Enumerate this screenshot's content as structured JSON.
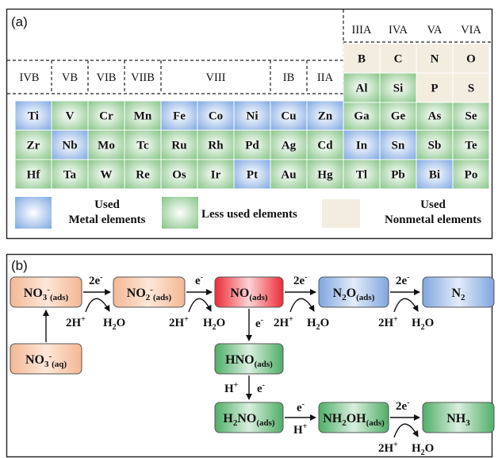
{
  "panel_a": {
    "label": "(a)",
    "main_groups": [
      "IIIA",
      "IVA",
      "VA",
      "VIA"
    ],
    "sub_groups": [
      "IVB",
      "VB",
      "VIB",
      "VIIB",
      "VIII",
      "IB",
      "IIA"
    ],
    "nonmetal_top": [
      {
        "sym": "B",
        "kind": "nonmetal"
      },
      {
        "sym": "C",
        "kind": "nonmetal"
      },
      {
        "sym": "N",
        "kind": "nonmetal"
      },
      {
        "sym": "O",
        "kind": "nonmetal"
      }
    ],
    "nonmetal_second": [
      {
        "sym": "Al",
        "kind": "less"
      },
      {
        "sym": "Si",
        "kind": "less"
      },
      {
        "sym": "P",
        "kind": "nonmetal"
      },
      {
        "sym": "S",
        "kind": "nonmetal"
      }
    ],
    "rows": [
      [
        {
          "sym": "Ti",
          "kind": "used"
        },
        {
          "sym": "V",
          "kind": "less"
        },
        {
          "sym": "Cr",
          "kind": "less"
        },
        {
          "sym": "Mn",
          "kind": "less"
        },
        {
          "sym": "Fe",
          "kind": "used"
        },
        {
          "sym": "Co",
          "kind": "used"
        },
        {
          "sym": "Ni",
          "kind": "used"
        },
        {
          "sym": "Cu",
          "kind": "used"
        },
        {
          "sym": "Zn",
          "kind": "used"
        },
        {
          "sym": "Ga",
          "kind": "less"
        },
        {
          "sym": "Ge",
          "kind": "less"
        },
        {
          "sym": "As",
          "kind": "less"
        },
        {
          "sym": "Se",
          "kind": "less"
        }
      ],
      [
        {
          "sym": "Zr",
          "kind": "less"
        },
        {
          "sym": "Nb",
          "kind": "used"
        },
        {
          "sym": "Mo",
          "kind": "less"
        },
        {
          "sym": "Tc",
          "kind": "less"
        },
        {
          "sym": "Ru",
          "kind": "less"
        },
        {
          "sym": "Rh",
          "kind": "less"
        },
        {
          "sym": "Pd",
          "kind": "less"
        },
        {
          "sym": "Ag",
          "kind": "less"
        },
        {
          "sym": "Cd",
          "kind": "less"
        },
        {
          "sym": "In",
          "kind": "used"
        },
        {
          "sym": "Sn",
          "kind": "used"
        },
        {
          "sym": "Sb",
          "kind": "less"
        },
        {
          "sym": "Te",
          "kind": "less"
        }
      ],
      [
        {
          "sym": "Hf",
          "kind": "less"
        },
        {
          "sym": "Ta",
          "kind": "less"
        },
        {
          "sym": "W",
          "kind": "less"
        },
        {
          "sym": "Re",
          "kind": "less"
        },
        {
          "sym": "Os",
          "kind": "less"
        },
        {
          "sym": "Ir",
          "kind": "less"
        },
        {
          "sym": "Pt",
          "kind": "used"
        },
        {
          "sym": "Au",
          "kind": "less"
        },
        {
          "sym": "Hg",
          "kind": "less"
        },
        {
          "sym": "Tl",
          "kind": "less"
        },
        {
          "sym": "Pb",
          "kind": "less"
        },
        {
          "sym": "Bi",
          "kind": "used"
        },
        {
          "sym": "Po",
          "kind": "less"
        }
      ]
    ],
    "legend": {
      "used_line1": "Used",
      "used_line2": "Metal elements",
      "less": "Less used elements",
      "nonmetal_line1": "Used",
      "nonmetal_line2": "Nonmetal elements"
    },
    "colors": {
      "used": "#8fb3e6",
      "less": "#8cc68c",
      "nonmetal": "#f3ede0"
    }
  },
  "panel_b": {
    "label": "(b)",
    "nodes": {
      "no3_ads": {
        "base": "NO",
        "sub_a": "3",
        "sup": "-",
        "sub_b": "(ads)"
      },
      "no2_ads": {
        "base": "NO",
        "sub_a": "2",
        "sup": "-",
        "sub_b": "(ads)"
      },
      "no_ads": {
        "base": "NO",
        "sub_b": "(ads)"
      },
      "n2o_ads": {
        "base": "N",
        "sub_a": "2",
        "base2": "O",
        "sub_b": "(ads)"
      },
      "n2": {
        "base": "N",
        "sub_a": "2"
      },
      "no3_aq": {
        "base": "NO",
        "sub_a": "3",
        "sup": "-",
        "sub_b": "(aq)"
      },
      "hno_ads": {
        "base": "HNO",
        "sub_b": "(ads)"
      },
      "h2no_ads": {
        "base": "H",
        "sub_a": "2",
        "base2": "NO",
        "sub_b": "(ads)"
      },
      "nh2oh_ads": {
        "base": "NH",
        "sub_a": "2",
        "base2": "OH",
        "sub_b": "(ads)"
      },
      "nh3": {
        "base": "NH",
        "sub_a": "3"
      }
    },
    "conditions": {
      "two_e": "2e",
      "e": "e",
      "minus": "-",
      "two_h_plus": "2H",
      "h_plus": "H",
      "plus": "+",
      "water_h": "H",
      "water_2": "2",
      "water_o": "O"
    },
    "colors": {
      "orange": "#f6c9a9",
      "red": "#f0474f",
      "blue": "#8fb3e6",
      "green": "#6fbf82"
    }
  }
}
